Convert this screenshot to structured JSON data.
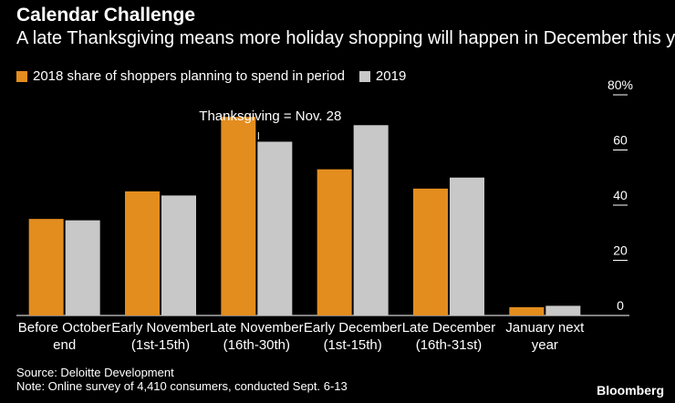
{
  "title": "Calendar Challenge",
  "subtitle": "A late Thanksgiving means more holiday shopping will happen in December this year",
  "source": "Source: Deloitte Development",
  "note": "Note: Online survey of 4,410 consumers, conducted Sept. 6-13",
  "brand": "Bloomberg",
  "colors": {
    "background": "#000000",
    "series_2018": "#e38d1f",
    "series_2019": "#c8c8c8",
    "text": "#ffffff"
  },
  "chart_data": {
    "type": "bar",
    "title": "Calendar Challenge",
    "subtitle": "A late Thanksgiving means more holiday shopping will happen in December this year",
    "categories": [
      [
        "Before October",
        "end"
      ],
      [
        "Early November",
        "(1st-15th)"
      ],
      [
        "Late November",
        "(16th-30th)"
      ],
      [
        "Early December",
        "(1st-15th)"
      ],
      [
        "Late December",
        "(16th-31st)"
      ],
      [
        "January next",
        "year"
      ]
    ],
    "series": [
      {
        "name": "2018 share of shoppers planning to spend in period",
        "values": [
          35,
          45,
          72,
          53,
          46,
          3
        ]
      },
      {
        "name": "2019",
        "values": [
          34.5,
          43.5,
          63,
          69,
          50,
          3.5
        ]
      }
    ],
    "ylim": [
      0,
      80
    ],
    "yticks": [
      0,
      20,
      40,
      60,
      80
    ],
    "ytick_labels": [
      "0",
      "20",
      "40",
      "60",
      "80%"
    ],
    "y_axis_side": "right",
    "annotation": {
      "text": "Thanksgiving = Nov. 28",
      "category_index": 2
    },
    "xlabel": "",
    "ylabel": "",
    "grid": false
  }
}
